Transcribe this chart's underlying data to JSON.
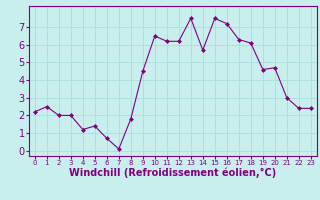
{
  "x": [
    0,
    1,
    2,
    3,
    4,
    5,
    6,
    7,
    8,
    9,
    10,
    11,
    12,
    13,
    14,
    15,
    16,
    17,
    18,
    19,
    20,
    21,
    22,
    23
  ],
  "y": [
    2.2,
    2.5,
    2.0,
    2.0,
    1.2,
    1.4,
    0.7,
    0.1,
    1.8,
    4.5,
    6.5,
    6.2,
    6.2,
    7.5,
    5.7,
    7.5,
    7.2,
    6.3,
    6.1,
    4.6,
    4.7,
    3.0,
    2.4,
    2.4
  ],
  "line_color": "#800080",
  "marker": "D",
  "markersize": 2,
  "linewidth": 0.8,
  "background_color": "#c8eeee",
  "grid_color": "#aadddd",
  "xlabel": "Windchill (Refroidissement éolien,°C)",
  "xlabel_fontsize": 7,
  "xlabel_color": "#800080",
  "xlabel_fontweight": "bold",
  "ylabel_ticks": [
    0,
    1,
    2,
    3,
    4,
    5,
    6,
    7
  ],
  "xtick_labels": [
    "0",
    "1",
    "2",
    "3",
    "4",
    "5",
    "6",
    "7",
    "8",
    "9",
    "10",
    "11",
    "12",
    "13",
    "14",
    "15",
    "16",
    "17",
    "18",
    "19",
    "20",
    "21",
    "22",
    "23"
  ],
  "ylim": [
    -0.3,
    8.2
  ],
  "xlim": [
    -0.5,
    23.5
  ],
  "tick_color": "#800080",
  "ytick_fontsize": 7,
  "xtick_fontsize": 5,
  "border_color": "#800080"
}
